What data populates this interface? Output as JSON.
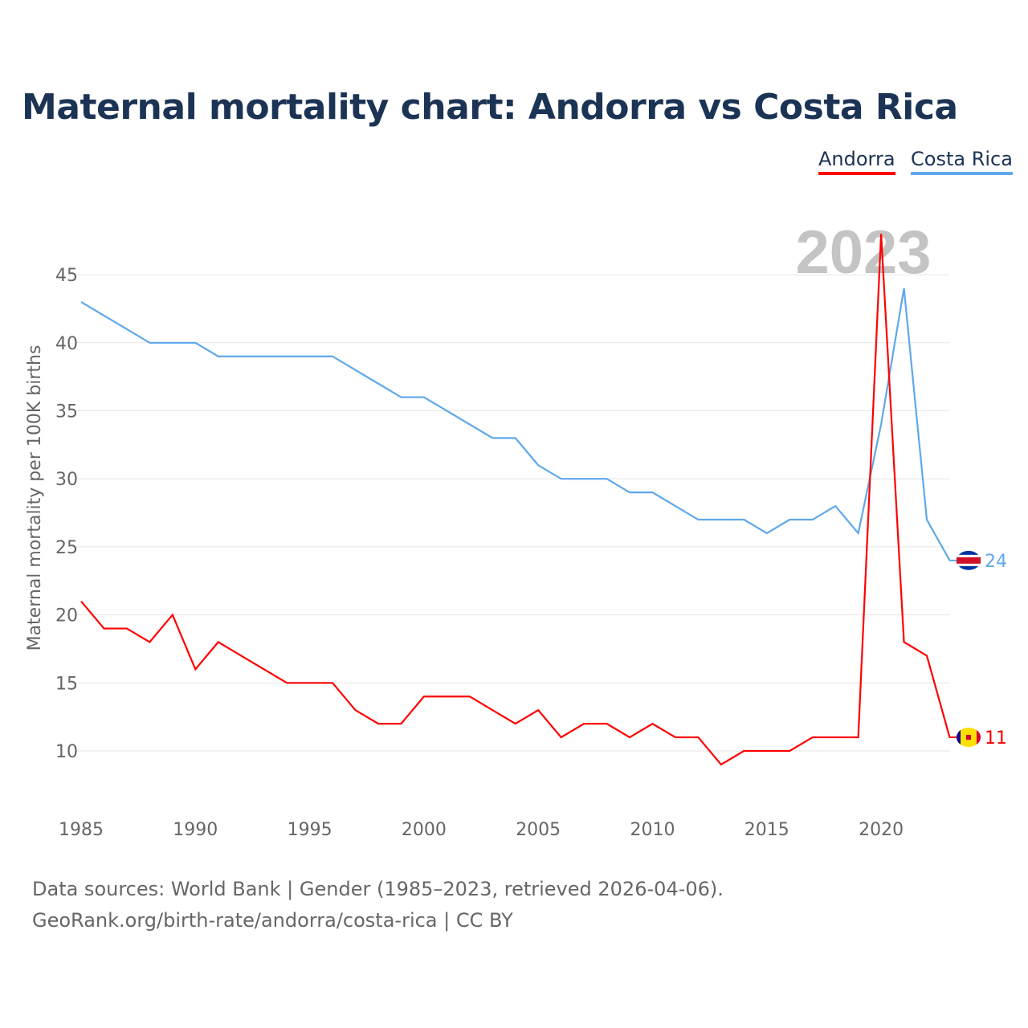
{
  "title": "Maternal mortality chart: Andorra vs Costa Rica",
  "legend": [
    "Andorra",
    "Costa Rica"
  ],
  "year_label": "2023",
  "source_line1": "Data sources: World Bank | Gender (1985–2023, retrieved 2026-04-06).",
  "source_line2": "GeoRank.org/birth-rate/andorra/costa-rica | CC BY",
  "chart_data": {
    "type": "line",
    "title": "Maternal mortality chart: Andorra vs Costa Rica",
    "xlabel": "",
    "ylabel": "Maternal mortality per 100K births",
    "x": [
      1985,
      1986,
      1987,
      1988,
      1989,
      1990,
      1991,
      1992,
      1993,
      1994,
      1995,
      1996,
      1997,
      1998,
      1999,
      2000,
      2001,
      2002,
      2003,
      2004,
      2005,
      2006,
      2007,
      2008,
      2009,
      2010,
      2011,
      2012,
      2013,
      2014,
      2015,
      2016,
      2017,
      2018,
      2019,
      2020,
      2021,
      2022,
      2023
    ],
    "xticks": [
      1985,
      1990,
      1995,
      2000,
      2005,
      2010,
      2015,
      2020
    ],
    "yticks": [
      10,
      15,
      20,
      25,
      30,
      35,
      40,
      45
    ],
    "xlim": [
      1985,
      2023
    ],
    "ylim": [
      7,
      48
    ],
    "grid": true,
    "legend_position": "top-right",
    "series": [
      {
        "name": "Andorra",
        "color": "#ff0000",
        "end_label": "11",
        "values": [
          21,
          19,
          19,
          18,
          20,
          16,
          18,
          17,
          16,
          15,
          15,
          15,
          13,
          12,
          12,
          14,
          14,
          14,
          13,
          12,
          13,
          11,
          12,
          12,
          11,
          12,
          11,
          11,
          9,
          10,
          10,
          10,
          11,
          11,
          11,
          48,
          18,
          17,
          11
        ]
      },
      {
        "name": "Costa Rica",
        "color": "#5fa8ec",
        "end_label": "24",
        "values": [
          43,
          42,
          41,
          40,
          40,
          40,
          39,
          39,
          39,
          39,
          39,
          39,
          38,
          37,
          36,
          36,
          35,
          34,
          33,
          33,
          31,
          30,
          30,
          30,
          29,
          29,
          28,
          27,
          27,
          27,
          26,
          27,
          27,
          28,
          26,
          34,
          44,
          27,
          24
        ]
      }
    ]
  }
}
